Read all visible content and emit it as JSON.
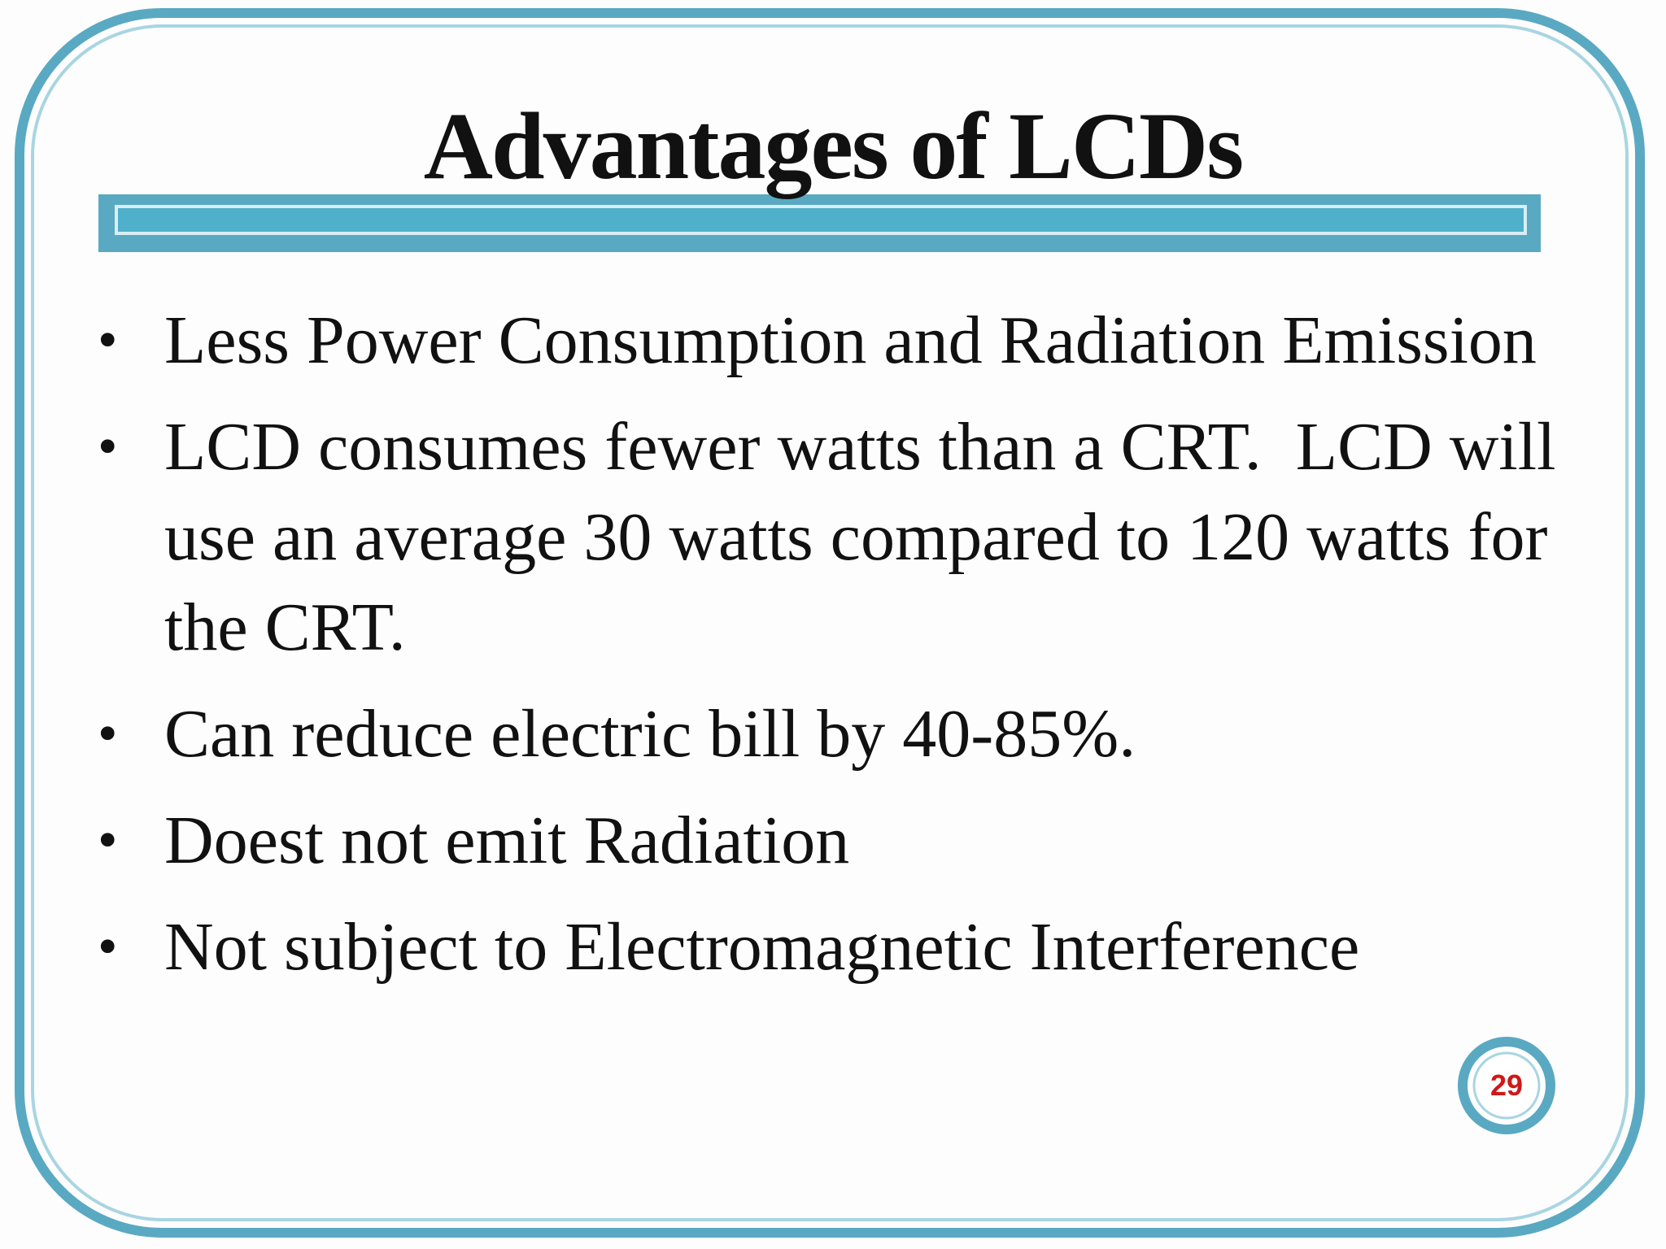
{
  "header": {
    "title": "Advantages of LCDs"
  },
  "bullets": [
    "Less Power Consumption and Radiation Emission",
    "LCD consumes fewer watts than a CRT.  LCD will use an average 30 watts compared to 120 watts for the CRT.",
    "Can reduce electric bill by 40-85%.",
    "Doest not emit Radiation",
    "Not subject to Electromagnetic Interference"
  ],
  "page_number": "29"
}
